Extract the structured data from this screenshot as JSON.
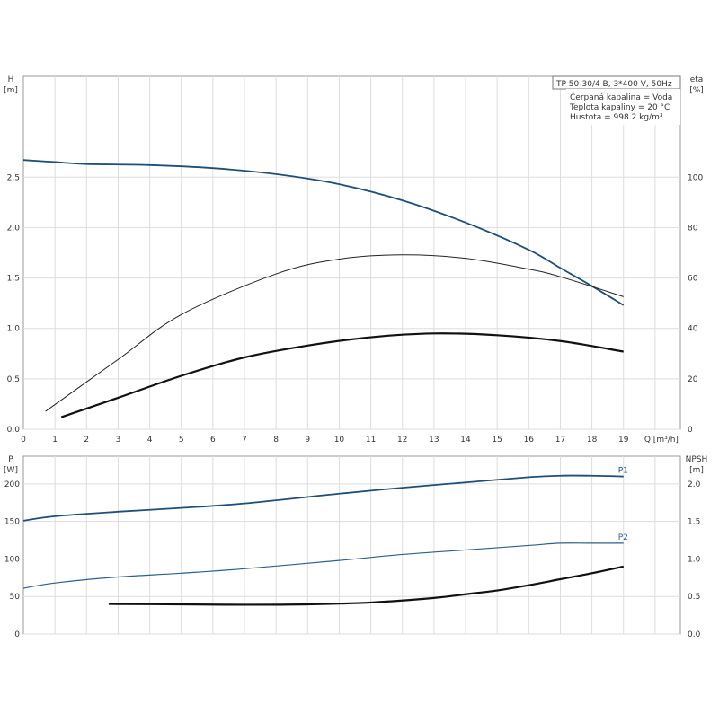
{
  "chart_data": [
    {
      "type": "line",
      "title_box": "TP 50-30/4 B, 3*400 V, 50Hz",
      "info_lines": [
        "Čerpaná kapalina = Voda",
        "Teplota kapaliny = 20 °C",
        "Hustota = 998.2 kg/m³"
      ],
      "ylabel": "H",
      "yunit": "[m]",
      "y2label": "eta",
      "y2unit": "[%]",
      "xlabel": "Q [m³/h]",
      "xlim": [
        0,
        20.8
      ],
      "ylim": [
        0,
        3.5
      ],
      "y2lim": [
        0,
        140
      ],
      "xticks": [
        0,
        1,
        2,
        3,
        4,
        5,
        6,
        7,
        8,
        9,
        10,
        11,
        12,
        13,
        14,
        15,
        16,
        17,
        18,
        19
      ],
      "yticks": [
        "0.0",
        "0.5",
        "1.0",
        "1.5",
        "2.0",
        "2.5"
      ],
      "y2ticks": [
        "0",
        "20",
        "40",
        "60",
        "80",
        "100"
      ],
      "grid": true,
      "series": [
        {
          "axis": "H",
          "color": "#1f4e79",
          "width": 1.8,
          "x": [
            0,
            1,
            2,
            4,
            6,
            8,
            10,
            12,
            14,
            16,
            17,
            18,
            19
          ],
          "y": [
            2.67,
            2.65,
            2.63,
            2.62,
            2.59,
            2.53,
            2.43,
            2.27,
            2.05,
            1.78,
            1.6,
            1.42,
            1.23
          ]
        },
        {
          "axis": "eta",
          "color": "#222222",
          "width": 1,
          "x": [
            0.7,
            3,
            5,
            8,
            10,
            12,
            14,
            16,
            17,
            19
          ],
          "y": [
            7.1,
            27.7,
            45.5,
            61.6,
            67.5,
            69.2,
            67.8,
            63.5,
            60.5,
            52.6
          ]
        },
        {
          "axis": "eta",
          "color": "#111111",
          "width": 2.2,
          "x": [
            1.2,
            3,
            5,
            7,
            9,
            11,
            13,
            15,
            17,
            19
          ],
          "y": [
            4.8,
            12.5,
            21.2,
            28.5,
            33.2,
            36.5,
            38,
            37.3,
            35,
            30.8
          ]
        }
      ]
    },
    {
      "type": "line",
      "ylabel": "P",
      "yunit": "[W]",
      "y2label": "NPSH",
      "y2unit": "[m]",
      "xlim": [
        0,
        20.8
      ],
      "ylim": [
        0,
        237
      ],
      "y2lim": [
        0,
        2.37
      ],
      "yticks": [
        "0",
        "50",
        "100",
        "150",
        "200"
      ],
      "y2ticks": [
        "0.0",
        "0.5",
        "1.0",
        "1.5",
        "2.0"
      ],
      "grid": true,
      "series": [
        {
          "name": "P1",
          "axis": "P",
          "color": "#1f4e79",
          "width": 1.8,
          "x": [
            0,
            1,
            3,
            5,
            7,
            10,
            12,
            14,
            16,
            17,
            18,
            19
          ],
          "y": [
            151,
            157,
            163,
            168,
            174,
            187,
            195,
            202,
            209,
            211,
            211,
            210
          ]
        },
        {
          "name": "P2",
          "axis": "P",
          "color": "#2e5f8f",
          "width": 1.2,
          "x": [
            0,
            1,
            3,
            5,
            7,
            10,
            12,
            14,
            16,
            17,
            18,
            19
          ],
          "y": [
            61,
            68,
            76,
            81,
            87,
            98,
            106,
            112,
            118,
            121,
            121,
            121
          ]
        },
        {
          "axis": "NPSH",
          "color": "#111111",
          "width": 2.2,
          "x": [
            2.7,
            5,
            7,
            9,
            11,
            13,
            14,
            15,
            16,
            17,
            18,
            19
          ],
          "y": [
            0.4,
            0.395,
            0.39,
            0.395,
            0.42,
            0.48,
            0.53,
            0.58,
            0.65,
            0.73,
            0.81,
            0.9
          ]
        }
      ]
    }
  ]
}
